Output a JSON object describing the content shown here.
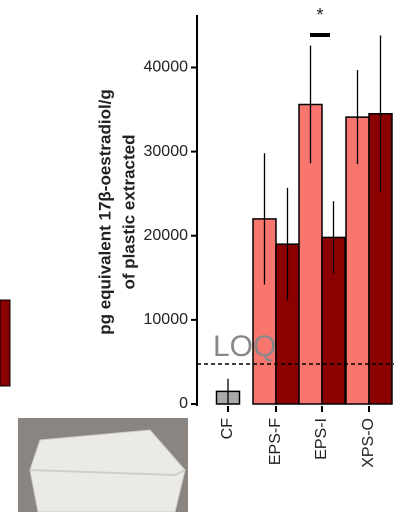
{
  "chart_data": {
    "type": "bar",
    "y_label_lines": [
      "pg equivalent 17β-oestradiol/g",
      "of plastic extracted"
    ],
    "categories": [
      "CF",
      "EPS-F",
      "EPS-I",
      "XPS-O"
    ],
    "series": [
      {
        "color": "#f8766d",
        "colors": [
          "#aaaaaa",
          "#f8766d",
          "#f8766d",
          "#f8766d"
        ],
        "values": [
          1500,
          22000,
          35600,
          34100
        ],
        "errors": [
          1500,
          7800,
          7000,
          5600
        ]
      },
      {
        "color": "#8b0000",
        "values": [
          null,
          19000,
          19800,
          34500
        ],
        "errors": [
          null,
          6700,
          4300,
          9300
        ]
      }
    ],
    "ylim": [
      0,
      46000
    ],
    "yticks": [
      0,
      10000,
      20000,
      30000,
      40000
    ],
    "loq": {
      "label": "LOQ",
      "value": 4750
    },
    "significance": {
      "label": "*",
      "category": 2
    }
  }
}
